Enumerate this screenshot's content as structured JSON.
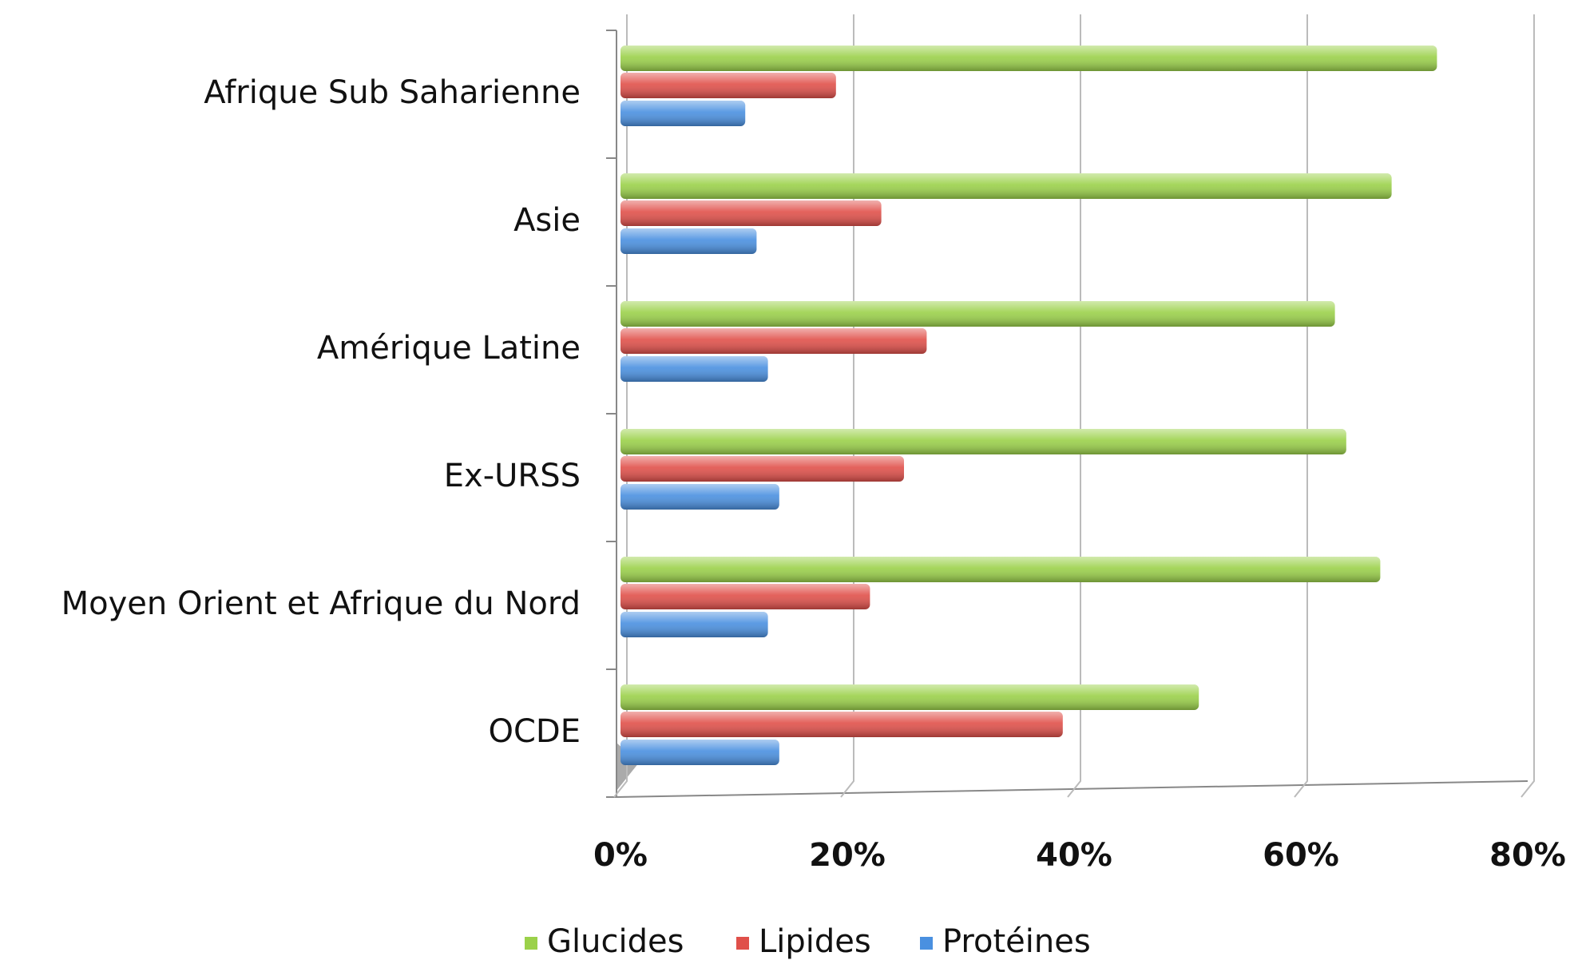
{
  "chart_data": {
    "type": "bar",
    "orientation": "horizontal",
    "categories": [
      "Afrique Sub Saharienne",
      "Asie",
      "Amérique Latine",
      "Ex-URSS",
      "Moyen Orient et Afrique du Nord",
      "OCDE"
    ],
    "series": [
      {
        "name": "Glucides",
        "color": "#9bd14a",
        "values": [
          72,
          68,
          63,
          64,
          67,
          51
        ]
      },
      {
        "name": "Lipides",
        "color": "#e0504a",
        "values": [
          19,
          23,
          27,
          25,
          22,
          39
        ]
      },
      {
        "name": "Protéines",
        "color": "#4a90e0",
        "values": [
          11,
          12,
          13,
          14,
          13,
          14
        ]
      }
    ],
    "xlim": [
      0,
      80
    ],
    "xticks": [
      {
        "value": 0,
        "label": "0%"
      },
      {
        "value": 20,
        "label": "20%"
      },
      {
        "value": 40,
        "label": "40%"
      },
      {
        "value": 60,
        "label": "60%"
      },
      {
        "value": 80,
        "label": "80%"
      }
    ],
    "grid": true,
    "legend": "bottom"
  }
}
